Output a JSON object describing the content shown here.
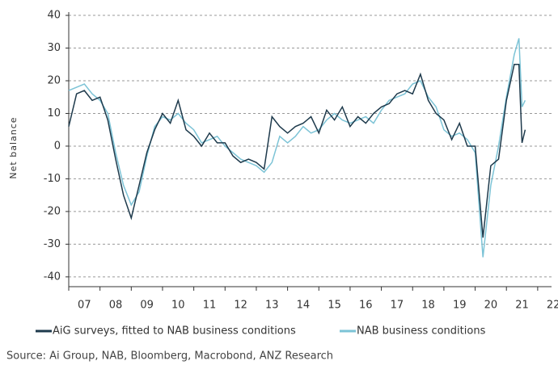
{
  "chart_data": {
    "type": "line",
    "y_label": "Net balance",
    "source": "Source: Ai Group, NAB, Bloomberg, Macrobond, ANZ Research",
    "ylim": [
      -43,
      41
    ],
    "yticks": [
      -40,
      -30,
      -20,
      -10,
      0,
      10,
      20,
      30,
      40
    ],
    "xlim": [
      2007,
      2022.65
    ],
    "xticks": [
      {
        "value": 2007,
        "label": "07"
      },
      {
        "value": 2008,
        "label": "08"
      },
      {
        "value": 2009,
        "label": "09"
      },
      {
        "value": 2010,
        "label": "10"
      },
      {
        "value": 2011,
        "label": "11"
      },
      {
        "value": 2012,
        "label": "12"
      },
      {
        "value": 2013,
        "label": "13"
      },
      {
        "value": 2014,
        "label": "14"
      },
      {
        "value": 2015,
        "label": "15"
      },
      {
        "value": 2016,
        "label": "16"
      },
      {
        "value": 2017,
        "label": "17"
      },
      {
        "value": 2018,
        "label": "18"
      },
      {
        "value": 2019,
        "label": "19"
      },
      {
        "value": 2020,
        "label": "20"
      },
      {
        "value": 2021,
        "label": "21"
      },
      {
        "value": 2022,
        "label": "22"
      }
    ],
    "grid": true,
    "x": [
      2007.0,
      2007.25,
      2007.5,
      2007.75,
      2008.0,
      2008.25,
      2008.5,
      2008.75,
      2009.0,
      2009.25,
      2009.5,
      2009.75,
      2010.0,
      2010.25,
      2010.5,
      2010.75,
      2011.0,
      2011.25,
      2011.5,
      2011.75,
      2012.0,
      2012.25,
      2012.5,
      2012.75,
      2013.0,
      2013.25,
      2013.5,
      2013.75,
      2014.0,
      2014.25,
      2014.5,
      2014.75,
      2015.0,
      2015.25,
      2015.5,
      2015.75,
      2016.0,
      2016.25,
      2016.5,
      2016.75,
      2017.0,
      2017.25,
      2017.5,
      2017.75,
      2018.0,
      2018.25,
      2018.5,
      2018.75,
      2019.0,
      2019.25,
      2019.5,
      2019.75,
      2020.0,
      2020.25,
      2020.5,
      2020.75,
      2021.0,
      2021.25,
      2021.4,
      2021.5,
      2021.6
    ],
    "series": [
      {
        "name": "AiG surveys, fitted to NAB business conditions",
        "color": "#1e3a4c",
        "values": [
          6,
          16,
          17,
          14,
          15,
          8,
          -4,
          -15,
          -22,
          -12,
          -2,
          5,
          10,
          7,
          14,
          5,
          3,
          0,
          4,
          1,
          1,
          -3,
          -5,
          -4,
          -5,
          -7,
          9,
          6,
          4,
          6,
          7,
          9,
          4,
          11,
          8,
          12,
          6,
          9,
          7,
          10,
          12,
          13,
          16,
          17,
          16,
          22,
          14,
          10,
          8,
          2,
          7,
          0,
          0,
          -28,
          -6,
          -4,
          14,
          25,
          25,
          1,
          5
        ]
      },
      {
        "name": "NAB business conditions",
        "color": "#7cc3d6",
        "values": [
          17,
          18,
          19,
          16,
          14,
          10,
          -2,
          -12,
          -18,
          -14,
          -3,
          6,
          9,
          8,
          10,
          7,
          5,
          1,
          2,
          3,
          0,
          -2,
          -4,
          -5,
          -6,
          -8,
          -5,
          3,
          1,
          3,
          6,
          4,
          5,
          8,
          10,
          8,
          7,
          8,
          9,
          7,
          11,
          14,
          15,
          16,
          19,
          20,
          15,
          12,
          5,
          3,
          4,
          2,
          -2,
          -34,
          -12,
          0,
          15,
          28,
          33,
          12,
          14
        ]
      }
    ]
  }
}
